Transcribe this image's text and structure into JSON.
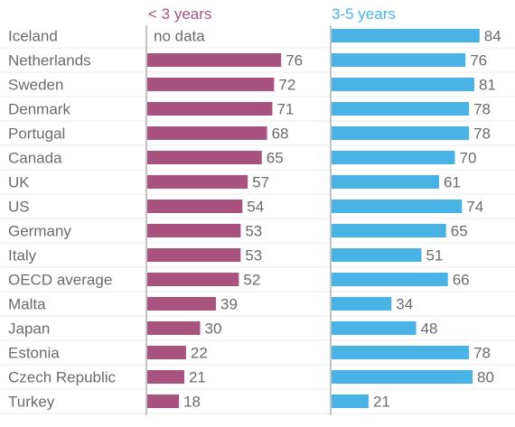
{
  "colors": {
    "under3": "#a8537f",
    "years3to5": "#4ab3e6",
    "text": "#6b6b6b",
    "gridline": "#ececec",
    "axis": "#8a8a8a"
  },
  "chart_data": {
    "type": "bar",
    "orientation": "horizontal",
    "title": "",
    "grid": true,
    "categories": [
      "Iceland",
      "Netherlands",
      "Sweden",
      "Denmark",
      "Portugal",
      "Canada",
      "UK",
      "US",
      "Germany",
      "Italy",
      "OECD average",
      "Malta",
      "Japan",
      "Estonia",
      "Czech Republic",
      "Turkey"
    ],
    "series": [
      {
        "name": "< 3 years",
        "values": [
          null,
          76,
          72,
          71,
          68,
          65,
          57,
          54,
          53,
          53,
          52,
          39,
          30,
          22,
          21,
          18
        ],
        "missing_label": "no data"
      },
      {
        "name": "3-5 years",
        "values": [
          84,
          76,
          81,
          78,
          78,
          70,
          61,
          74,
          65,
          51,
          66,
          34,
          48,
          78,
          80,
          21
        ]
      }
    ],
    "xlim": [
      0,
      100
    ]
  }
}
